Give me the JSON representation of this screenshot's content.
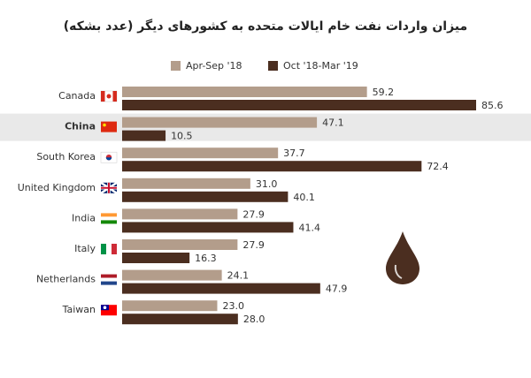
{
  "chart_data": {
    "type": "bar",
    "orientation": "horizontal",
    "title": "میزان واردات نفت خام ایالات متحده به کشورهای دیگر (عدد بشکه)",
    "categories": [
      "Canada",
      "China",
      "South Korea",
      "United Kingdom",
      "India",
      "Italy",
      "Netherlands",
      "Taiwan"
    ],
    "series": [
      {
        "name": "Apr-Sep '18",
        "color": "#b39d8b",
        "values": [
          59.2,
          47.1,
          37.7,
          31.0,
          27.9,
          27.9,
          24.1,
          23.0
        ],
        "value_labels": [
          "59.2",
          "47.1",
          "37.7",
          "31.0",
          "27.9",
          "27.9",
          "24.1",
          "23.0"
        ]
      },
      {
        "name": "Oct '18-Mar '19",
        "color": "#4b2e20",
        "values": [
          85.6,
          10.5,
          72.4,
          40.1,
          41.4,
          16.3,
          47.9,
          28.0
        ],
        "value_labels": [
          "85.6",
          "10.5",
          "72.4",
          "40.1",
          "41.4",
          "16.3",
          "47.9",
          "28.0"
        ]
      }
    ]
  }
}
